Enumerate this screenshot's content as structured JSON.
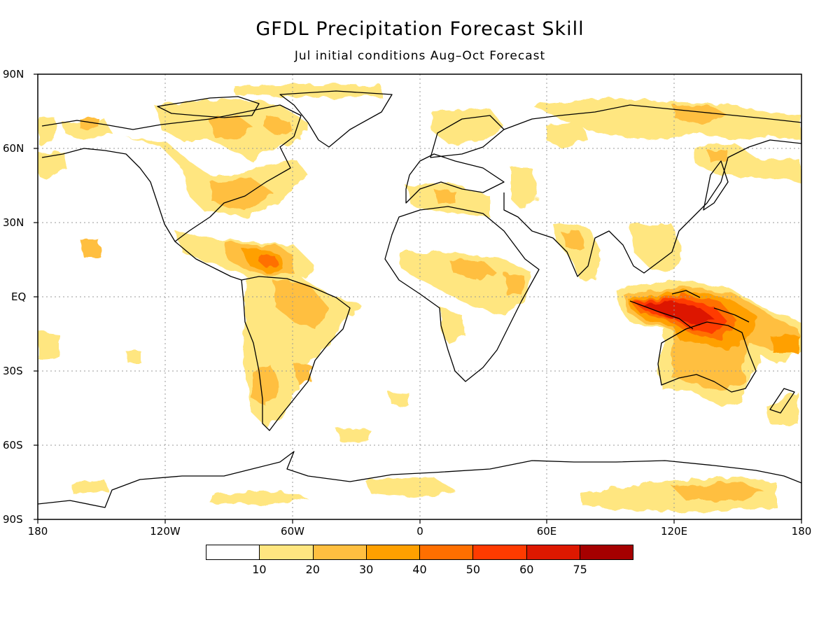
{
  "title": "GFDL Precipitation Forecast Skill",
  "subtitle": "Jul initial conditions  Aug–Oct Forecast",
  "lat_labels": [
    "90N",
    "60N",
    "30N",
    "EQ",
    "30S",
    "60S",
    "90S"
  ],
  "lon_labels": [
    "180",
    "120W",
    "60W",
    "0",
    "60E",
    "120E",
    "180"
  ],
  "colorbar": {
    "colors": [
      "#ffffff",
      "#ffe680",
      "#ffbf40",
      "#ffa000",
      "#ff6f00",
      "#ff3b00",
      "#dd1800",
      "#a50000"
    ],
    "labels": [
      "10",
      "20",
      "30",
      "40",
      "50",
      "60",
      "75"
    ]
  },
  "colors": {
    "land_outline": "#000000",
    "grid": "#999999"
  }
}
